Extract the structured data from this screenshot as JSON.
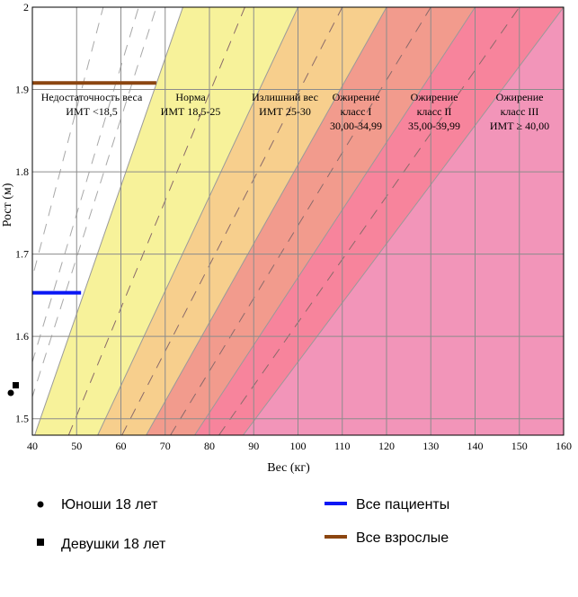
{
  "chart_data": {
    "type": "area",
    "xlabel": "Вес (кг)",
    "ylabel": "Рост (м)",
    "xlim": [
      40,
      160
    ],
    "ylim": [
      1.48,
      2.0
    ],
    "x_ticks": [
      40,
      50,
      60,
      70,
      80,
      90,
      100,
      110,
      120,
      130,
      140,
      150,
      160
    ],
    "y_ticks": [
      1.5,
      1.6,
      1.7,
      1.8,
      1.9,
      2
    ],
    "grid": true,
    "zones": [
      {
        "bmi_min": 0,
        "bmi_max": 18.5,
        "color": "#ffffff",
        "label": [
          "Недостаточность веса",
          "ИМТ <18,5"
        ]
      },
      {
        "bmi_min": 18.5,
        "bmi_max": 25,
        "color": "#f7f29a",
        "label": [
          "Норма",
          "ИМТ 18,5-25"
        ]
      },
      {
        "bmi_min": 25,
        "bmi_max": 30,
        "color": "#f7cf8d",
        "label": [
          "Излишний вес",
          "ИМТ 25-30"
        ]
      },
      {
        "bmi_min": 30,
        "bmi_max": 35,
        "color": "#f29b8d",
        "label": [
          "Ожирение",
          "класс I",
          "30,00-34,99"
        ]
      },
      {
        "bmi_min": 35,
        "bmi_max": 40,
        "color": "#f7849c",
        "label": [
          "Ожирение",
          "класс II",
          "35,00-39,99"
        ]
      },
      {
        "bmi_min": 40,
        "bmi_max": 100,
        "color": "#f295b9",
        "label": [
          "Ожирение",
          "класс III",
          "ИМТ ≥ 40,00"
        ]
      }
    ],
    "dashed_bmi_lines": [
      14,
      16,
      17,
      22,
      27.5,
      32.5,
      37.5
    ],
    "series": [
      {
        "name": "Все пациенты",
        "color": "#0a17f5",
        "x": [
          40,
          51
        ],
        "y": [
          1.653,
          1.653
        ]
      },
      {
        "name": "Все взрослые",
        "color": "#8b4510",
        "x": [
          40,
          68
        ],
        "y": [
          1.908,
          1.908
        ]
      }
    ],
    "markers": [
      {
        "name": "Юноши 18 лет",
        "shape": "circle"
      },
      {
        "name": "Девушки 18 лет",
        "shape": "square"
      }
    ]
  }
}
